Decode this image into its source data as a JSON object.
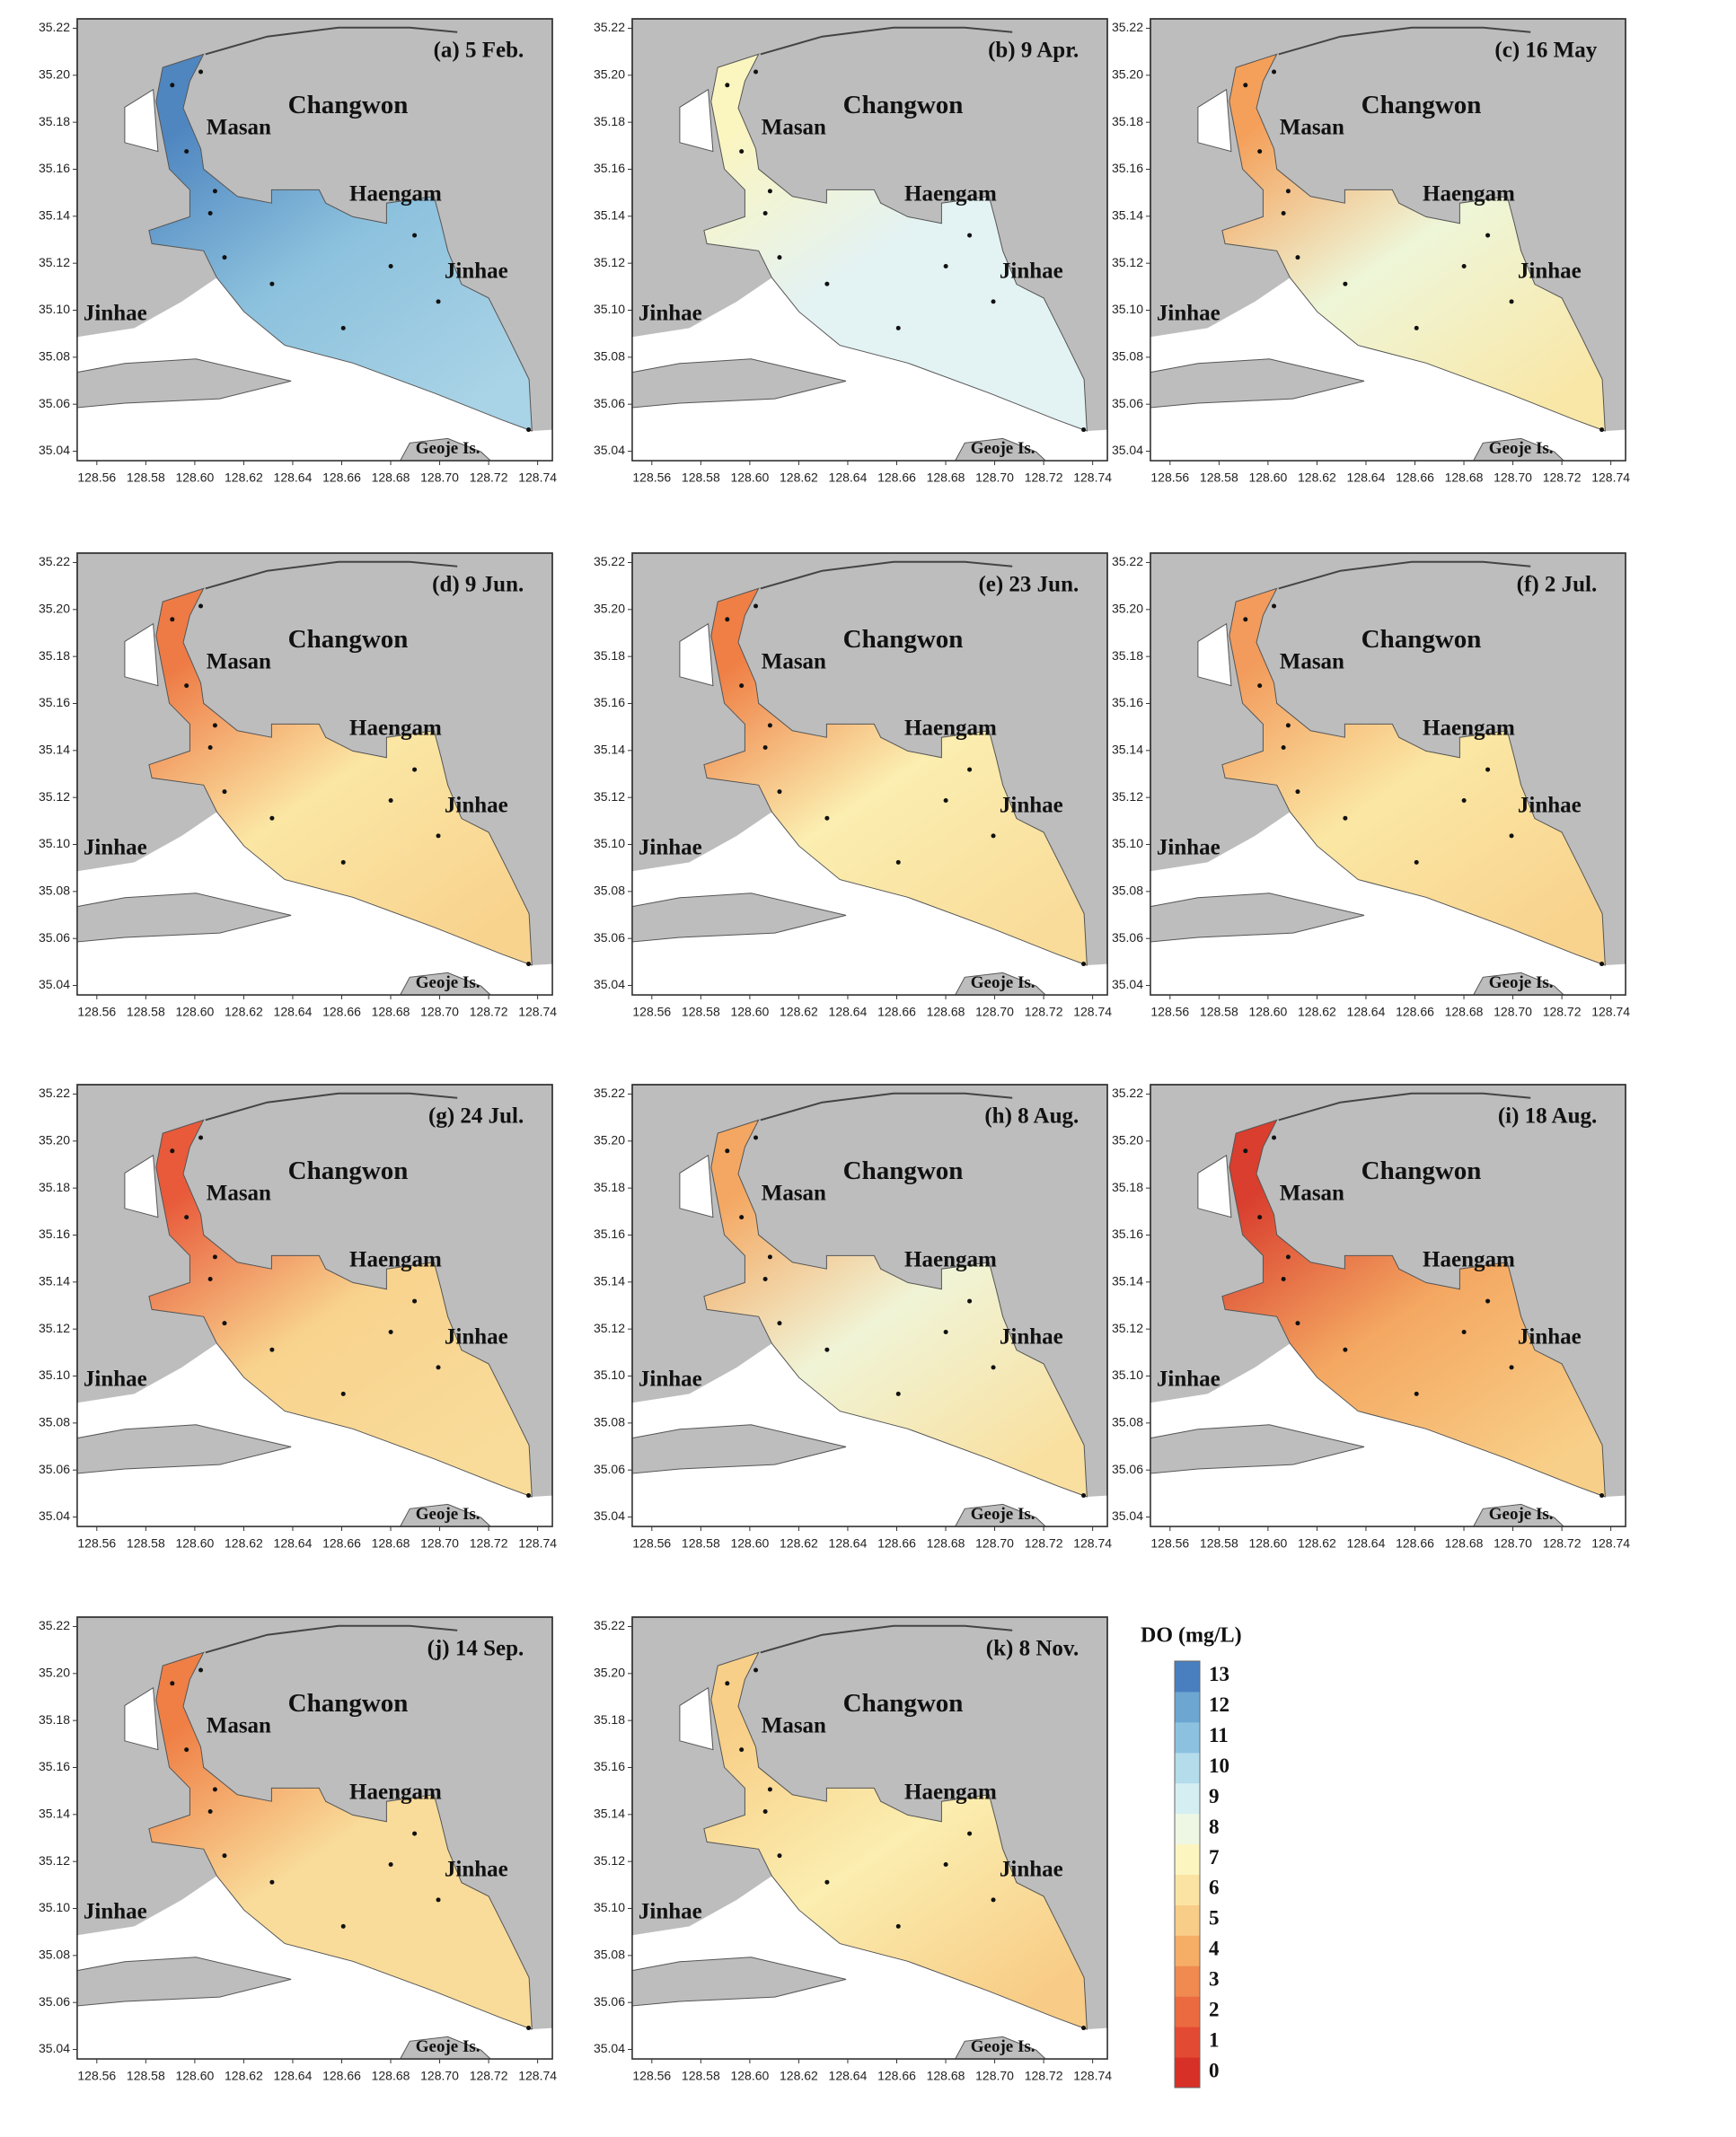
{
  "panels": [
    {
      "title": "(a) 5 Feb.",
      "colors": [
        "#4f86c0",
        "#8cc1dd",
        "#a9d3e6"
      ]
    },
    {
      "title": "(b) 9 Apr.",
      "colors": [
        "#fbf5c0",
        "#e3f2f3",
        "#e3f2f3"
      ]
    },
    {
      "title": "(c) 16 May",
      "colors": [
        "#f4a05a",
        "#eef6d8",
        "#f9e7a8"
      ]
    },
    {
      "title": "(d) 9 Jun.",
      "colors": [
        "#ee7a45",
        "#fbe6a4",
        "#f8d38e"
      ]
    },
    {
      "title": "(e) 23 Jun.",
      "colors": [
        "#ef7f45",
        "#fbeeb0",
        "#f9dc9a"
      ]
    },
    {
      "title": "(f) 2 Jul.",
      "colors": [
        "#f29b5c",
        "#fbe7a4",
        "#f8d38e"
      ]
    },
    {
      "title": "(g) 24 Jul.",
      "colors": [
        "#e85a3a",
        "#f8d38e",
        "#f9dc9a"
      ]
    },
    {
      "title": "(h) 8 Aug.",
      "colors": [
        "#f4a762",
        "#f0f4d6",
        "#f9e0a0"
      ]
    },
    {
      "title": "(i) 18 Aug.",
      "colors": [
        "#d93e2e",
        "#f4a862",
        "#f8cf88"
      ]
    },
    {
      "title": "(j) 14 Sep.",
      "colors": [
        "#ef7f45",
        "#f9dc9a",
        "#f9dc9a"
      ]
    },
    {
      "title": "(k) 8 Nov.",
      "colors": [
        "#f8cf88",
        "#fbeeb0",
        "#f8cc86"
      ]
    }
  ],
  "place_names": {
    "city": "Changwon",
    "masan": "Masan",
    "haengam": "Haengam",
    "jinhae_east": "Jinhae",
    "jinhae_west": "Jinhae",
    "island": "Geoje Is."
  },
  "lon_range": [
    128.552,
    128.746
  ],
  "lat_range": [
    35.036,
    35.224
  ],
  "lon_ticks": [
    128.56,
    128.58,
    {
      "value": 128.6,
      "label": "128.60"
    },
    128.62,
    128.64,
    128.66,
    128.68,
    {
      "value": 128.7,
      "label": "128.70"
    },
    128.72,
    128.74
  ],
  "lat_ticks": [
    35.04,
    35.06,
    35.08,
    {
      "value": 35.1,
      "label": "35.10"
    },
    35.12,
    35.14,
    35.16,
    35.18,
    {
      "value": 35.2,
      "label": "35.20"
    },
    35.22
  ],
  "legend": {
    "title": "DO (mg/L)",
    "ticks": [
      0,
      1,
      2,
      3,
      4,
      5,
      6,
      7,
      8,
      9,
      10,
      11,
      12,
      13
    ],
    "colors": [
      "#d73027",
      "#e34a33",
      "#ec6a40",
      "#f08a50",
      "#f6ad66",
      "#f8cd88",
      "#fbe3a3",
      "#fdf5c0",
      "#eef7e4",
      "#d5eef2",
      "#b4dceb",
      "#8cc2e0",
      "#6ea6d2",
      "#4a7fbf"
    ]
  }
}
